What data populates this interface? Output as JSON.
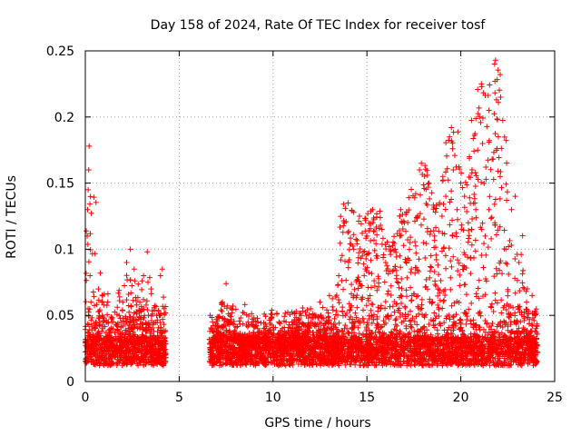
{
  "chart_data": {
    "type": "scatter",
    "title": "Day 158 of 2024, Rate Of TEC Index for receiver tosf",
    "xlabel": "GPS time / hours",
    "ylabel": "ROTI / TECUs",
    "xlim": [
      0,
      25
    ],
    "ylim": [
      0,
      0.25
    ],
    "xticks": [
      0,
      5,
      10,
      15,
      20,
      25
    ],
    "xtick_labels": [
      "0",
      "5",
      "10",
      "15",
      "20",
      "25"
    ],
    "yticks": [
      0,
      0.05,
      0.1,
      0.15,
      0.2,
      0.25
    ],
    "ytick_labels": [
      "0",
      "0.05",
      "0.1",
      "0.15",
      "0.2",
      "0.25"
    ],
    "grid": true,
    "marker": "+",
    "series_color": "#ff0000",
    "series": [
      {
        "name": "ROTI",
        "note": "dense cloud of points; representative samples below (data gap between ~4.3 h and ~6.6 h)",
        "points": [
          [
            0.05,
            0.03
          ],
          [
            0.1,
            0.11
          ],
          [
            0.12,
            0.13
          ],
          [
            0.15,
            0.145
          ],
          [
            0.18,
            0.16
          ],
          [
            0.2,
            0.178
          ],
          [
            0.25,
            0.08
          ],
          [
            0.3,
            0.06
          ],
          [
            0.5,
            0.04
          ],
          [
            0.7,
            0.07
          ],
          [
            0.8,
            0.082
          ],
          [
            0.9,
            0.05
          ],
          [
            1.2,
            0.035
          ],
          [
            1.5,
            0.045
          ],
          [
            1.8,
            0.05
          ],
          [
            2.0,
            0.06
          ],
          [
            2.2,
            0.09
          ],
          [
            2.4,
            0.1
          ],
          [
            2.6,
            0.085
          ],
          [
            2.9,
            0.06
          ],
          [
            3.1,
            0.08
          ],
          [
            3.3,
            0.098
          ],
          [
            3.5,
            0.07
          ],
          [
            3.8,
            0.05
          ],
          [
            4.0,
            0.08
          ],
          [
            4.1,
            0.085
          ],
          [
            4.2,
            0.055
          ],
          [
            6.7,
            0.03
          ],
          [
            7.0,
            0.04
          ],
          [
            7.3,
            0.06
          ],
          [
            7.5,
            0.074
          ],
          [
            7.7,
            0.05
          ],
          [
            8.0,
            0.03
          ],
          [
            8.5,
            0.035
          ],
          [
            9.0,
            0.03
          ],
          [
            9.5,
            0.04
          ],
          [
            10.0,
            0.035
          ],
          [
            10.5,
            0.04
          ],
          [
            11.0,
            0.045
          ],
          [
            11.5,
            0.05
          ],
          [
            12.0,
            0.055
          ],
          [
            12.5,
            0.06
          ],
          [
            13.0,
            0.065
          ],
          [
            13.5,
            0.08
          ],
          [
            13.8,
            0.12
          ],
          [
            14.0,
            0.135
          ],
          [
            14.3,
            0.1
          ],
          [
            14.6,
            0.125
          ],
          [
            15.0,
            0.11
          ],
          [
            15.3,
            0.13
          ],
          [
            15.5,
            0.095
          ],
          [
            15.8,
            0.115
          ],
          [
            16.0,
            0.09
          ],
          [
            16.5,
            0.1
          ],
          [
            16.8,
            0.13
          ],
          [
            17.0,
            0.12
          ],
          [
            17.3,
            0.105
          ],
          [
            17.6,
            0.142
          ],
          [
            17.8,
            0.16
          ],
          [
            17.9,
            0.165
          ],
          [
            18.3,
            0.15
          ],
          [
            18.6,
            0.11
          ],
          [
            19.0,
            0.125
          ],
          [
            19.2,
            0.14
          ],
          [
            19.4,
            0.185
          ],
          [
            19.5,
            0.192
          ],
          [
            19.6,
            0.16
          ],
          [
            19.8,
            0.13
          ],
          [
            20.0,
            0.15
          ],
          [
            20.2,
            0.14
          ],
          [
            20.4,
            0.12
          ],
          [
            20.6,
            0.16
          ],
          [
            20.8,
            0.13
          ],
          [
            20.9,
            0.175
          ],
          [
            21.0,
            0.2
          ],
          [
            21.1,
            0.225
          ],
          [
            21.3,
            0.11
          ],
          [
            21.5,
            0.13
          ],
          [
            21.8,
            0.24
          ],
          [
            21.85,
            0.243
          ],
          [
            21.9,
            0.213
          ],
          [
            21.95,
            0.198
          ],
          [
            22.0,
            0.185
          ],
          [
            22.1,
            0.155
          ],
          [
            22.4,
            0.1
          ],
          [
            22.7,
            0.13
          ],
          [
            22.9,
            0.14
          ],
          [
            23.1,
            0.09
          ],
          [
            23.5,
            0.06
          ],
          [
            23.8,
            0.065
          ],
          [
            24.0,
            0.04
          ]
        ]
      }
    ]
  }
}
